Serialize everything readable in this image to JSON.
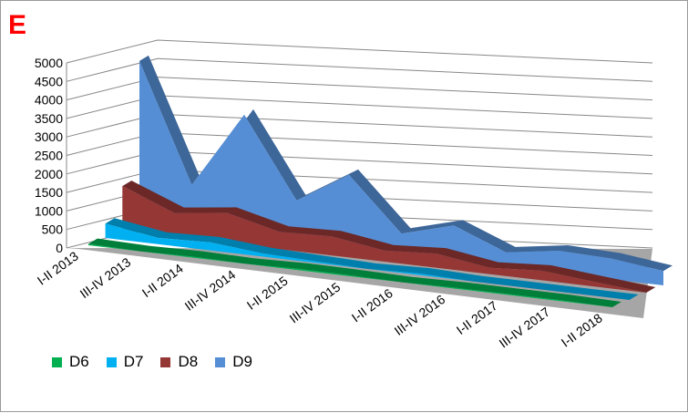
{
  "panel_label": "E",
  "chart_data": {
    "type": "area",
    "title": "",
    "xlabel": "",
    "ylabel": "",
    "categories": [
      "I-II 2013",
      "III-IV 2013",
      "I-II 2014",
      "III-IV 2014",
      "I-II 2015",
      "III-IV 2015",
      "I-II 2016",
      "III-IV 2016",
      "I-II 2017",
      "III-IV 2017",
      "I-II 2018"
    ],
    "ylim": [
      0,
      5000
    ],
    "yticks": [
      "0",
      "500",
      "1000",
      "1500",
      "2000",
      "2500",
      "3000",
      "3500",
      "4000",
      "4500",
      "5000"
    ],
    "grid": true,
    "three_d": true,
    "legend_position": "bottom-left",
    "series": [
      {
        "name": "D6",
        "color": "#00b050",
        "values": [
          40,
          0,
          30,
          0,
          40,
          30,
          0,
          30,
          30,
          30,
          0
        ]
      },
      {
        "name": "D7",
        "color": "#00b0f0",
        "values": [
          450,
          200,
          250,
          100,
          50,
          0,
          50,
          0,
          0,
          0,
          0
        ]
      },
      {
        "name": "D8",
        "color": "#953735",
        "values": [
          1400,
          750,
          950,
          550,
          600,
          350,
          450,
          200,
          300,
          150,
          0
        ]
      },
      {
        "name": "D9",
        "color": "#558ed5",
        "values": [
          5100,
          1400,
          3800,
          1300,
          2300,
          650,
          1100,
          450,
          700,
          650,
          450
        ]
      }
    ]
  }
}
